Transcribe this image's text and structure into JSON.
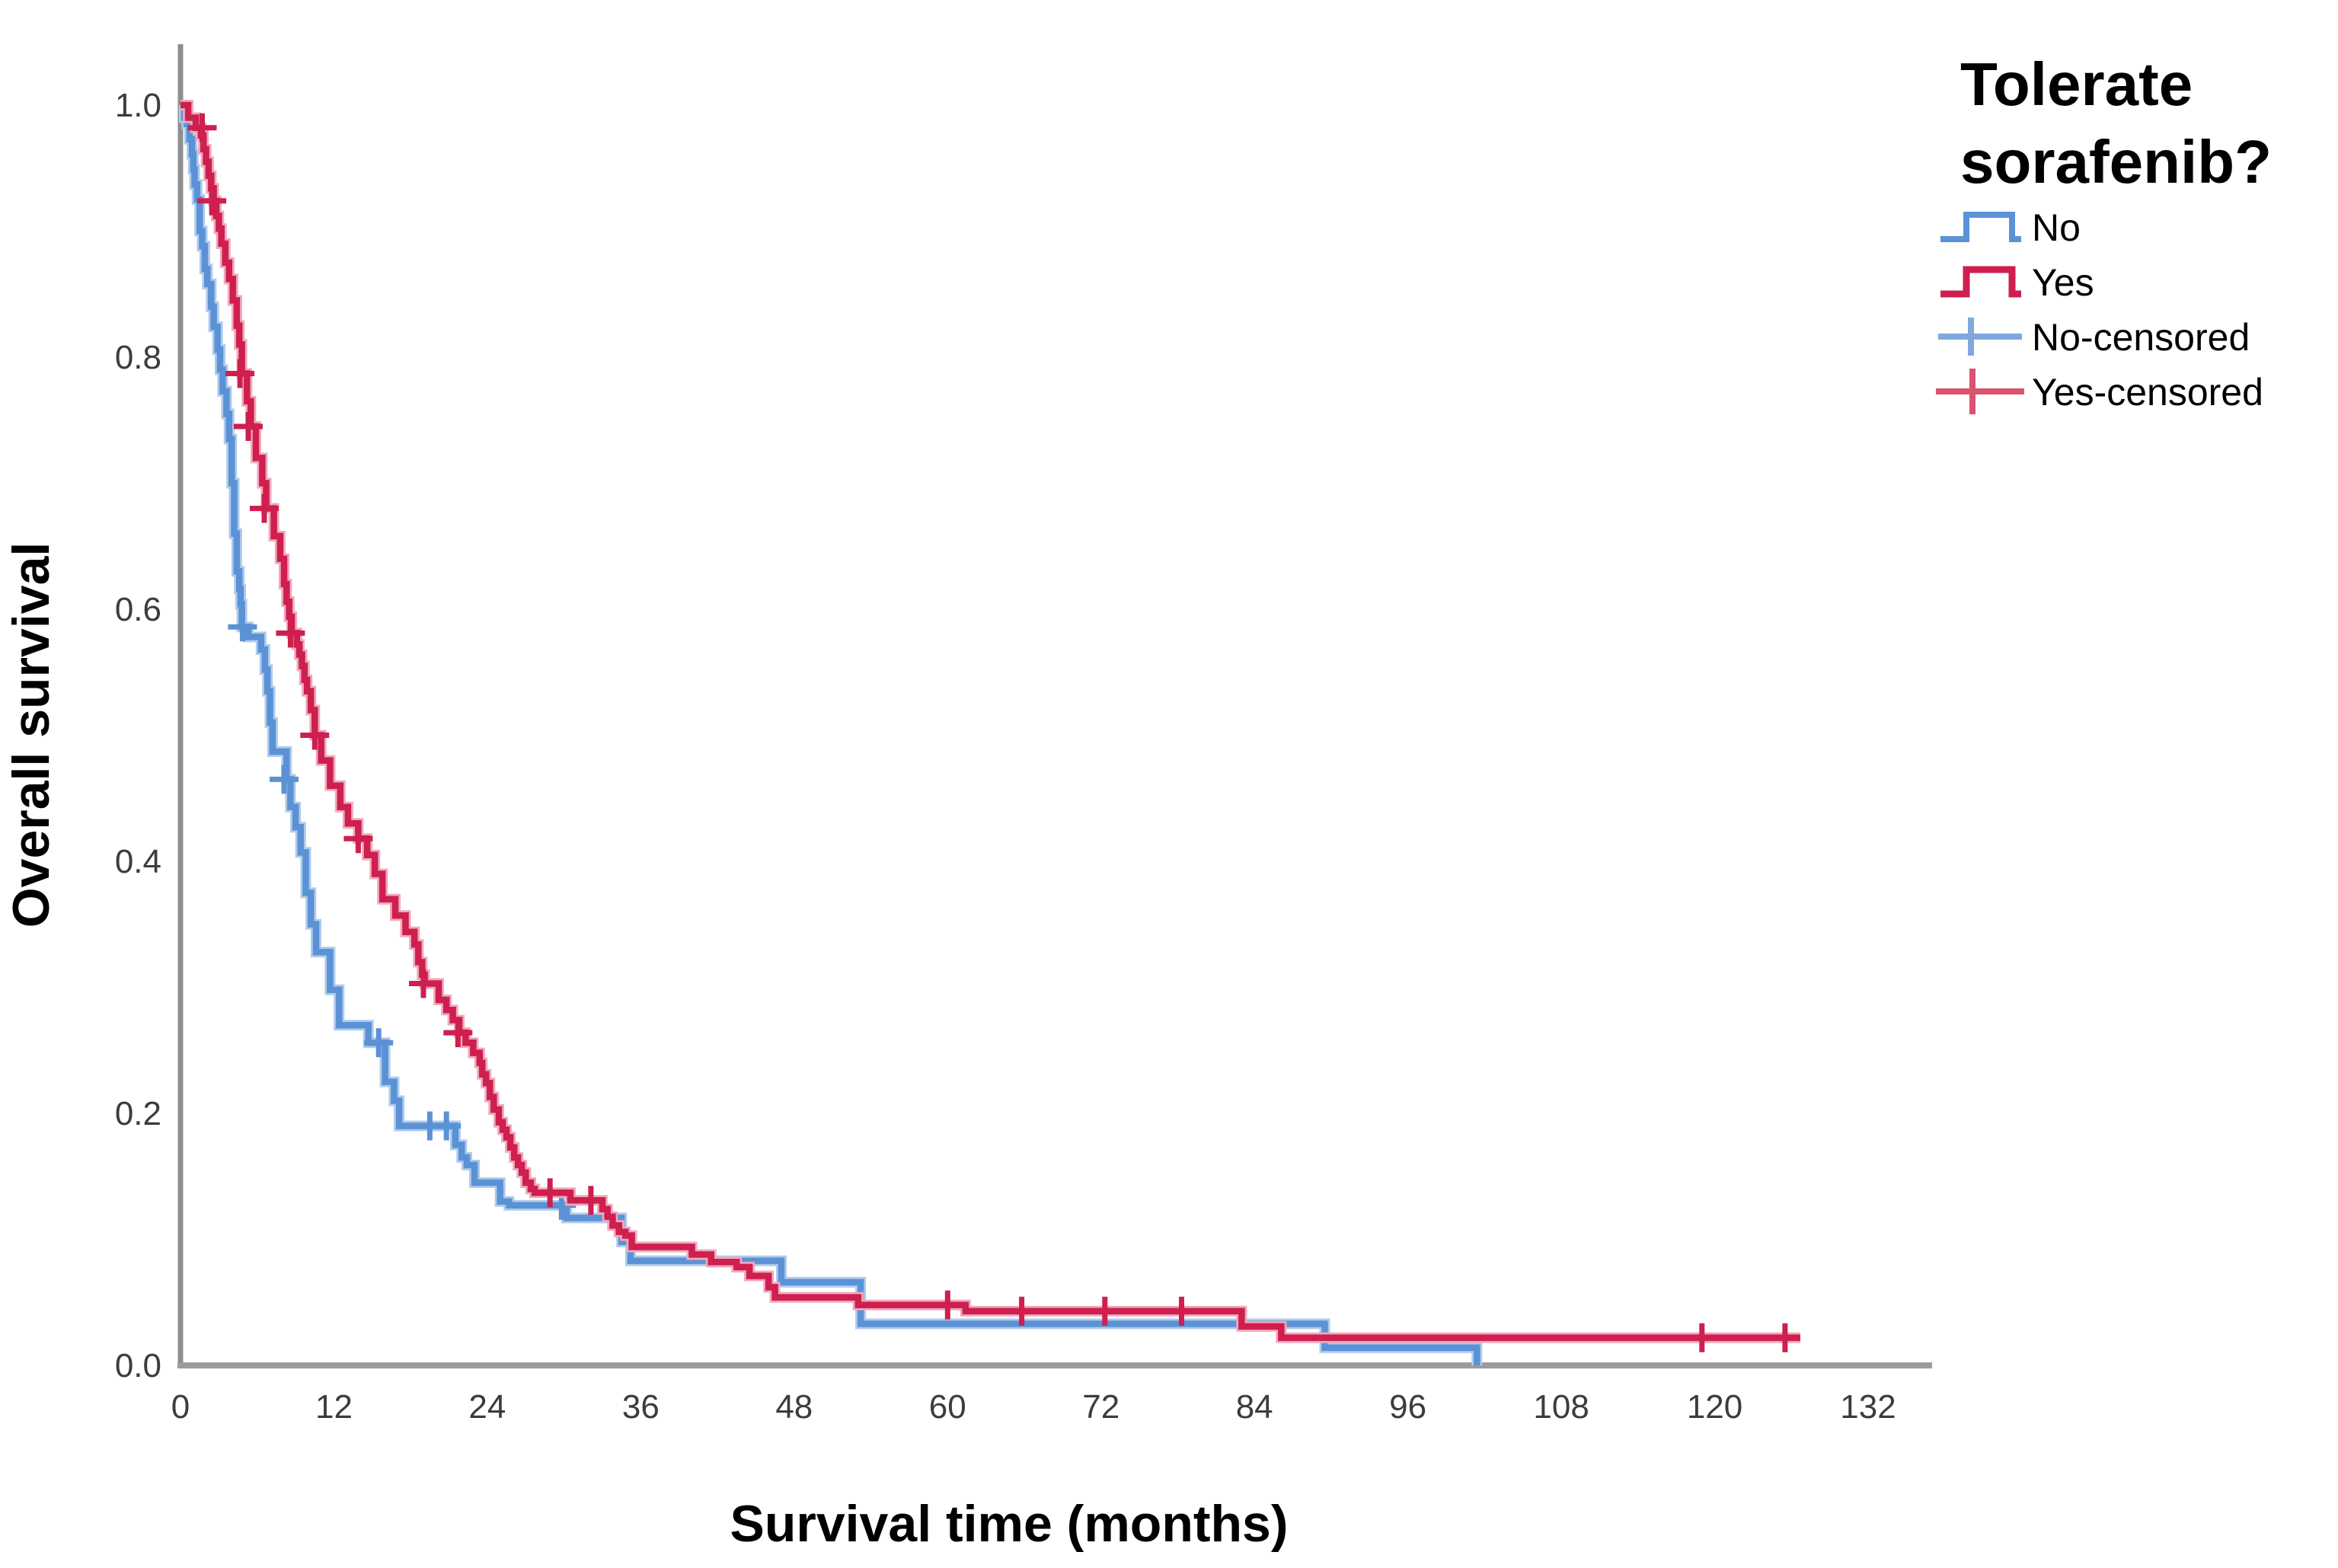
{
  "chart_data": {
    "type": "line",
    "subtype": "kaplan-meier-step",
    "title": "",
    "xlabel": "Survival time (months)",
    "ylabel": "Overall survival",
    "xlim": [
      0,
      138
    ],
    "ylim": [
      0.0,
      1.0
    ],
    "grid": false,
    "x_ticks": [
      "0",
      "12",
      "24",
      "36",
      "48",
      "60",
      "72",
      "84",
      "96",
      "108",
      "120",
      "132"
    ],
    "y_ticks": [
      "1.0",
      "0.8",
      "0.6",
      "0.4",
      "0.2",
      "0.0"
    ],
    "legend": {
      "title_line1": "Tolerate",
      "title_line2": "sorafenib?",
      "position": "top-right",
      "entries": [
        "No",
        "Yes",
        "No-censored",
        "Yes-censored"
      ]
    },
    "series": [
      {
        "name": "No",
        "color": "#5B92D6",
        "halo": "#AECBEC",
        "points": [
          [
            0,
            1.0
          ],
          [
            0.3,
            0.99
          ],
          [
            0.5,
            0.985
          ],
          [
            0.7,
            0.973
          ],
          [
            0.9,
            0.961
          ],
          [
            1.0,
            0.949
          ],
          [
            1.1,
            0.937
          ],
          [
            1.3,
            0.925
          ],
          [
            1.5,
            0.9
          ],
          [
            1.7,
            0.888
          ],
          [
            1.9,
            0.87
          ],
          [
            2.1,
            0.858
          ],
          [
            2.4,
            0.84
          ],
          [
            2.6,
            0.824
          ],
          [
            2.9,
            0.806
          ],
          [
            3.1,
            0.79
          ],
          [
            3.3,
            0.773
          ],
          [
            3.6,
            0.755
          ],
          [
            3.8,
            0.735
          ],
          [
            4.0,
            0.7
          ],
          [
            4.2,
            0.66
          ],
          [
            4.4,
            0.63
          ],
          [
            4.6,
            0.616
          ],
          [
            4.7,
            0.604
          ],
          [
            4.8,
            0.586
          ],
          [
            5.3,
            0.578
          ],
          [
            6.3,
            0.568
          ],
          [
            6.6,
            0.552
          ],
          [
            6.8,
            0.535
          ],
          [
            7.0,
            0.51
          ],
          [
            7.2,
            0.487
          ],
          [
            8.3,
            0.465
          ],
          [
            8.6,
            0.443
          ],
          [
            9.0,
            0.427
          ],
          [
            9.4,
            0.407
          ],
          [
            9.8,
            0.375
          ],
          [
            10.2,
            0.35
          ],
          [
            10.6,
            0.328
          ],
          [
            11.7,
            0.298
          ],
          [
            12.4,
            0.27
          ],
          [
            14.7,
            0.256
          ],
          [
            16.0,
            0.225
          ],
          [
            16.7,
            0.21
          ],
          [
            17.1,
            0.19
          ],
          [
            21.5,
            0.175
          ],
          [
            22.0,
            0.165
          ],
          [
            22.4,
            0.159
          ],
          [
            23.0,
            0.145
          ],
          [
            25.0,
            0.13
          ],
          [
            25.7,
            0.127
          ],
          [
            30.2,
            0.117
          ],
          [
            34.5,
            0.098
          ],
          [
            35.2,
            0.083
          ],
          [
            47.0,
            0.066
          ],
          [
            53.2,
            0.033
          ],
          [
            89.5,
            0.014
          ],
          [
            101.4,
            0.0
          ]
        ],
        "censored": [
          [
            4.85,
            0.586
          ],
          [
            8.1,
            0.465
          ],
          [
            15.5,
            0.256
          ],
          [
            19.5,
            0.19
          ],
          [
            20.8,
            0.19
          ],
          [
            29.8,
            0.127
          ]
        ]
      },
      {
        "name": "Yes",
        "color": "#CE1F4E",
        "halo": "#F0A9BE",
        "points": [
          [
            0,
            1.0
          ],
          [
            0.6,
            0.99
          ],
          [
            1.2,
            0.982
          ],
          [
            1.6,
            0.976
          ],
          [
            1.8,
            0.965
          ],
          [
            2.0,
            0.955
          ],
          [
            2.2,
            0.944
          ],
          [
            2.4,
            0.934
          ],
          [
            2.6,
            0.924
          ],
          [
            2.8,
            0.912
          ],
          [
            3.0,
            0.902
          ],
          [
            3.2,
            0.89
          ],
          [
            3.5,
            0.875
          ],
          [
            3.8,
            0.862
          ],
          [
            4.1,
            0.845
          ],
          [
            4.4,
            0.825
          ],
          [
            4.6,
            0.81
          ],
          [
            4.8,
            0.787
          ],
          [
            5.2,
            0.765
          ],
          [
            5.5,
            0.745
          ],
          [
            5.9,
            0.72
          ],
          [
            6.4,
            0.7
          ],
          [
            6.7,
            0.68
          ],
          [
            7.3,
            0.658
          ],
          [
            7.8,
            0.64
          ],
          [
            8.1,
            0.62
          ],
          [
            8.3,
            0.606
          ],
          [
            8.5,
            0.594
          ],
          [
            8.7,
            0.581
          ],
          [
            9.1,
            0.572
          ],
          [
            9.3,
            0.564
          ],
          [
            9.5,
            0.555
          ],
          [
            9.7,
            0.544
          ],
          [
            9.9,
            0.535
          ],
          [
            10.2,
            0.52
          ],
          [
            10.5,
            0.5
          ],
          [
            11.0,
            0.48
          ],
          [
            11.7,
            0.46
          ],
          [
            12.5,
            0.443
          ],
          [
            13.1,
            0.43
          ],
          [
            13.9,
            0.418
          ],
          [
            14.6,
            0.405
          ],
          [
            15.2,
            0.39
          ],
          [
            15.8,
            0.37
          ],
          [
            16.8,
            0.357
          ],
          [
            17.6,
            0.344
          ],
          [
            18.3,
            0.334
          ],
          [
            18.6,
            0.32
          ],
          [
            18.9,
            0.31
          ],
          [
            19.1,
            0.303
          ],
          [
            20.2,
            0.29
          ],
          [
            20.8,
            0.282
          ],
          [
            21.3,
            0.274
          ],
          [
            21.8,
            0.264
          ],
          [
            22.3,
            0.256
          ],
          [
            22.9,
            0.248
          ],
          [
            23.4,
            0.24
          ],
          [
            23.6,
            0.231
          ],
          [
            23.9,
            0.224
          ],
          [
            24.2,
            0.213
          ],
          [
            24.5,
            0.203
          ],
          [
            24.9,
            0.193
          ],
          [
            25.2,
            0.187
          ],
          [
            25.5,
            0.181
          ],
          [
            25.8,
            0.173
          ],
          [
            26.1,
            0.165
          ],
          [
            26.4,
            0.159
          ],
          [
            26.7,
            0.153
          ],
          [
            27.0,
            0.145
          ],
          [
            27.4,
            0.14
          ],
          [
            27.7,
            0.137
          ],
          [
            30.5,
            0.131
          ],
          [
            33.0,
            0.124
          ],
          [
            33.4,
            0.118
          ],
          [
            33.8,
            0.111
          ],
          [
            34.3,
            0.106
          ],
          [
            34.8,
            0.103
          ],
          [
            35.3,
            0.094
          ],
          [
            40.0,
            0.088
          ],
          [
            41.5,
            0.082
          ],
          [
            43.5,
            0.078
          ],
          [
            44.5,
            0.071
          ],
          [
            46.0,
            0.062
          ],
          [
            46.5,
            0.054
          ],
          [
            53.0,
            0.048
          ],
          [
            61.4,
            0.043
          ],
          [
            83.0,
            0.031
          ],
          [
            86.1,
            0.022
          ],
          [
            126.7,
            0.022
          ]
        ],
        "censored": [
          [
            1.7,
            0.982
          ],
          [
            2.45,
            0.924
          ],
          [
            4.65,
            0.787
          ],
          [
            5.3,
            0.745
          ],
          [
            6.55,
            0.68
          ],
          [
            8.6,
            0.581
          ],
          [
            10.5,
            0.5
          ],
          [
            13.9,
            0.418
          ],
          [
            19.0,
            0.303
          ],
          [
            21.7,
            0.264
          ],
          [
            28.9,
            0.137
          ],
          [
            32.1,
            0.131
          ],
          [
            60.0,
            0.048
          ],
          [
            65.8,
            0.043
          ],
          [
            72.3,
            0.043
          ],
          [
            78.3,
            0.043
          ],
          [
            119.0,
            0.022
          ],
          [
            125.5,
            0.022
          ]
        ]
      }
    ],
    "axis_color": "#969696"
  }
}
